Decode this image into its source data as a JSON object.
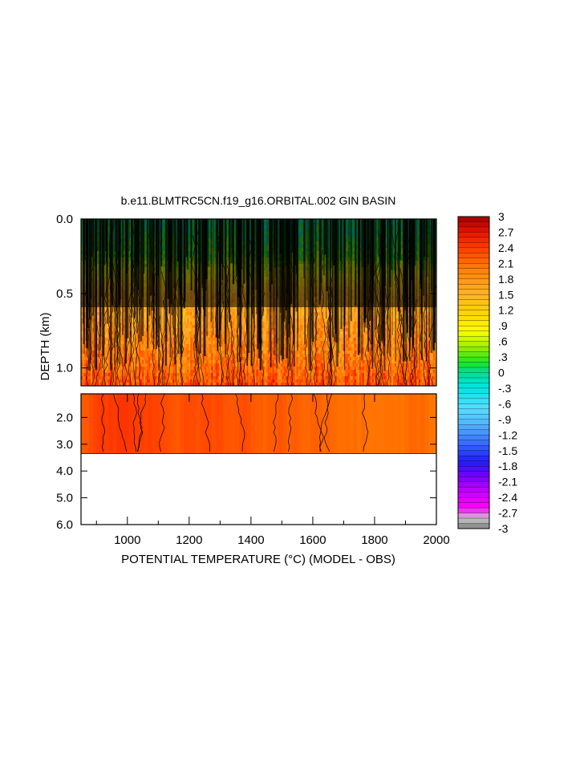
{
  "chart_data": {
    "type": "heatmap",
    "title": "b.e11.BLMTRC5CN.f19_g16.ORBITAL.002 GIN BASIN",
    "xlabel": "POTENTIAL TEMPERATURE (°C) (MODEL - OBS)",
    "ylabel": "DEPTH (km)",
    "xlim": [
      850,
      2000
    ],
    "upper_panel_ylim": [
      1.12,
      0.0
    ],
    "lower_panel_ylim": [
      6.0,
      1.12
    ],
    "x_ticks": [
      1000,
      1200,
      1400,
      1600,
      1800,
      2000
    ],
    "x_tick_labels": [
      "1000",
      "1200",
      "1400",
      "1600",
      "1800",
      "2000"
    ],
    "upper_y_ticks": [
      0.0,
      0.5,
      1.0
    ],
    "upper_y_tick_labels": [
      "0.0",
      "0.5",
      "1.0"
    ],
    "lower_y_ticks": [
      2.0,
      3.0,
      4.0,
      5.0,
      6.0
    ],
    "lower_y_tick_labels": [
      "2.0",
      "3.0",
      "4.0",
      "5.0",
      "6.0"
    ],
    "data_bottom_depth": 3.35,
    "depth_profile": [
      {
        "depth": 0.0,
        "value": 0.0
      },
      {
        "depth": 0.25,
        "value": 0.3
      },
      {
        "depth": 0.5,
        "value": 1.5
      },
      {
        "depth": 0.75,
        "value": 1.8
      },
      {
        "depth": 1.0,
        "value": 2.1
      },
      {
        "depth": 1.12,
        "value": 2.3
      },
      {
        "depth": 2.0,
        "value": 2.3
      },
      {
        "depth": 3.35,
        "value": 2.2
      }
    ],
    "colorbar": {
      "min": -3,
      "max": 3,
      "step": 0.1,
      "tick_labels": [
        "3",
        "2.7",
        "2.4",
        "2.1",
        "1.8",
        "1.5",
        "1.2",
        ".9",
        ".6",
        ".3",
        "0",
        "-.3",
        "-.6",
        "-.9",
        "-1.2",
        "-1.5",
        "-1.8",
        "-2.1",
        "-2.4",
        "-2.7",
        "-3"
      ],
      "color_stops": [
        {
          "v": -3.0,
          "c": "#808080"
        },
        {
          "v": -2.8,
          "c": "#c8c8c8"
        },
        {
          "v": -2.6,
          "c": "#ff00ff"
        },
        {
          "v": -2.3,
          "c": "#c800ff"
        },
        {
          "v": -2.0,
          "c": "#7800ff"
        },
        {
          "v": -1.7,
          "c": "#1e1eff"
        },
        {
          "v": -1.3,
          "c": "#3c78ff"
        },
        {
          "v": -1.0,
          "c": "#50b4ff"
        },
        {
          "v": -0.7,
          "c": "#5adcff"
        },
        {
          "v": -0.3,
          "c": "#00e6e6"
        },
        {
          "v": 0.0,
          "c": "#00dc96"
        },
        {
          "v": 0.2,
          "c": "#1ee61e"
        },
        {
          "v": 0.5,
          "c": "#a0f000"
        },
        {
          "v": 0.8,
          "c": "#ffff00"
        },
        {
          "v": 1.1,
          "c": "#ffd700"
        },
        {
          "v": 1.5,
          "c": "#ffb428"
        },
        {
          "v": 1.8,
          "c": "#ff9614"
        },
        {
          "v": 2.1,
          "c": "#ff6e00"
        },
        {
          "v": 2.4,
          "c": "#ff3c00"
        },
        {
          "v": 2.7,
          "c": "#e61400"
        },
        {
          "v": 3.0,
          "c": "#a00000"
        }
      ]
    }
  }
}
